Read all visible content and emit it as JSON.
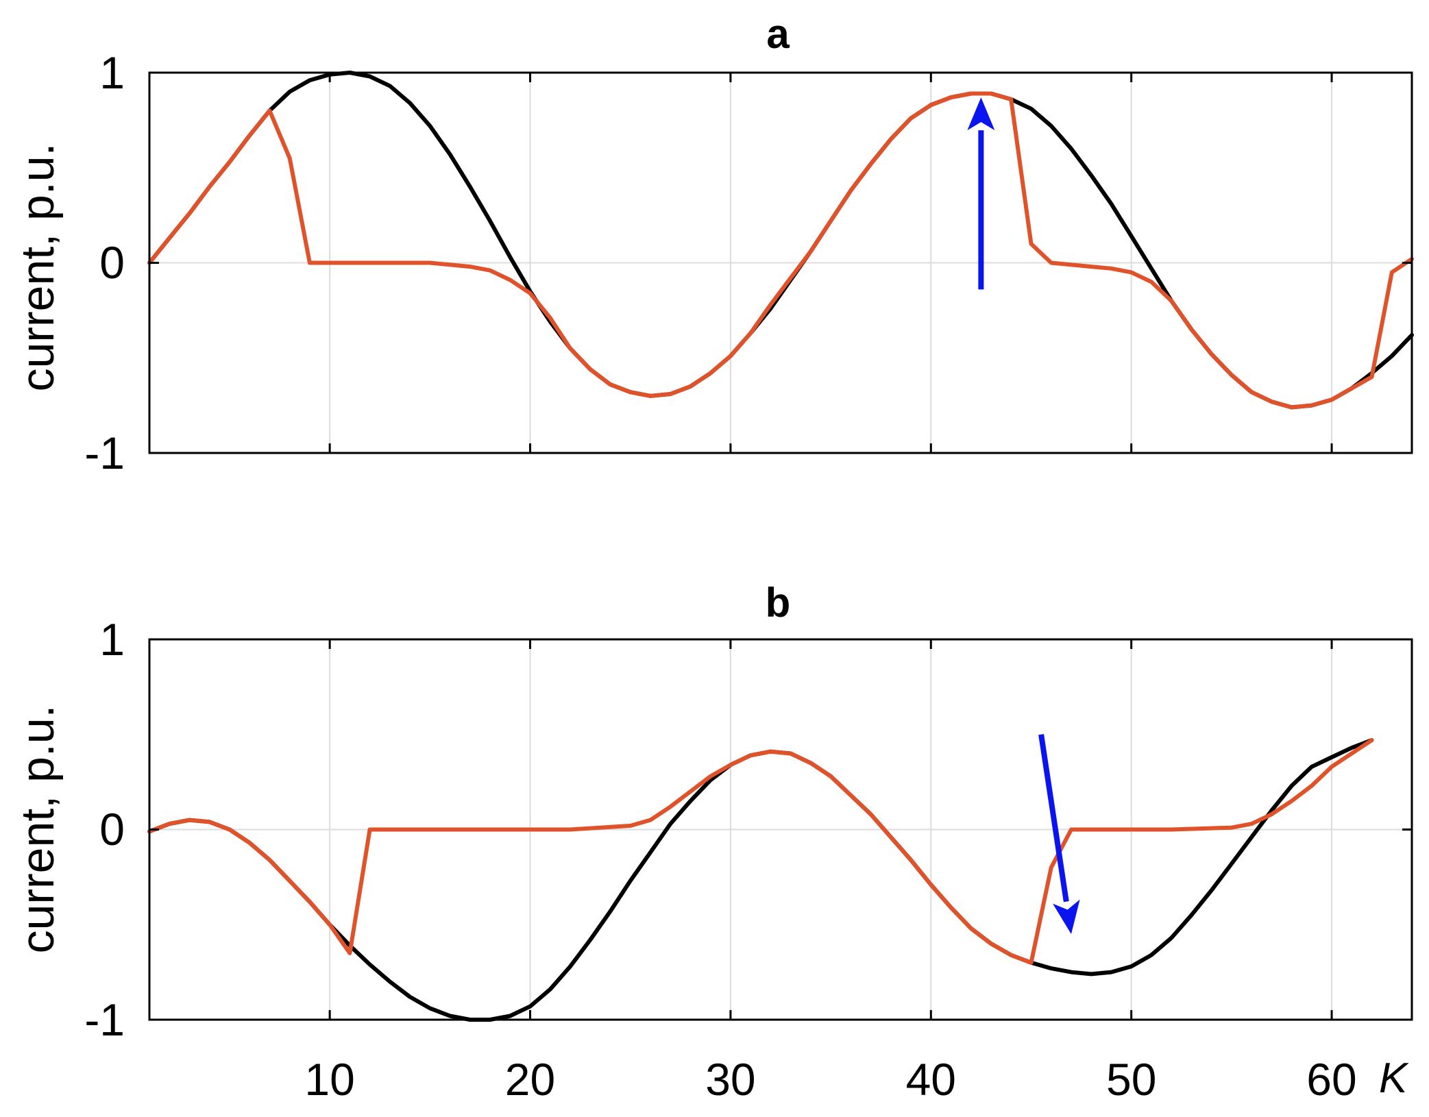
{
  "chart_data": [
    {
      "type": "line",
      "panel": "a",
      "title": "a",
      "ylabel": "current, p.u.",
      "xlim": [
        1,
        64
      ],
      "ylim": [
        -1,
        1
      ],
      "yticks": [
        "-1",
        "0",
        "1"
      ],
      "xticks": [
        10,
        20,
        30,
        40,
        50,
        60
      ],
      "grid": true,
      "colors": {
        "black_series": "#000000",
        "orange_series": "#e0522a",
        "arrow": "#0a14f0"
      },
      "series": [
        {
          "color": "#000000",
          "points": [
            [
              1,
              0
            ],
            [
              2,
              0.13
            ],
            [
              3,
              0.26
            ],
            [
              4,
              0.4
            ],
            [
              5,
              0.53
            ],
            [
              6,
              0.67
            ],
            [
              7,
              0.8
            ],
            [
              8,
              0.9
            ],
            [
              9,
              0.96
            ],
            [
              10,
              0.99
            ],
            [
              11,
              1
            ],
            [
              12,
              0.98
            ],
            [
              13,
              0.93
            ],
            [
              14,
              0.84
            ],
            [
              15,
              0.72
            ],
            [
              16,
              0.57
            ],
            [
              17,
              0.4
            ],
            [
              18,
              0.22
            ],
            [
              19,
              0.03
            ],
            [
              20,
              -0.15
            ],
            [
              21,
              -0.31
            ],
            [
              22,
              -0.45
            ],
            [
              23,
              -0.56
            ],
            [
              24,
              -0.64
            ],
            [
              25,
              -0.68
            ],
            [
              26,
              -0.7
            ],
            [
              27,
              -0.69
            ],
            [
              28,
              -0.65
            ],
            [
              29,
              -0.58
            ],
            [
              30,
              -0.49
            ],
            [
              31,
              -0.37
            ],
            [
              32,
              -0.24
            ],
            [
              33,
              -0.09
            ],
            [
              34,
              0.06
            ],
            [
              35,
              0.22
            ],
            [
              36,
              0.38
            ],
            [
              37,
              0.52
            ],
            [
              38,
              0.65
            ],
            [
              39,
              0.76
            ],
            [
              40,
              0.83
            ],
            [
              41,
              0.87
            ],
            [
              42,
              0.89
            ],
            [
              43,
              0.89
            ],
            [
              44,
              0.86
            ],
            [
              45,
              0.81
            ],
            [
              46,
              0.72
            ],
            [
              47,
              0.6
            ],
            [
              48,
              0.46
            ],
            [
              49,
              0.31
            ],
            [
              50,
              0.14
            ],
            [
              51,
              -0.03
            ],
            [
              52,
              -0.2
            ],
            [
              53,
              -0.35
            ],
            [
              54,
              -0.48
            ],
            [
              55,
              -0.59
            ],
            [
              56,
              -0.68
            ],
            [
              57,
              -0.73
            ],
            [
              58,
              -0.76
            ],
            [
              59,
              -0.75
            ],
            [
              60,
              -0.72
            ],
            [
              61,
              -0.66
            ],
            [
              62,
              -0.58
            ],
            [
              63,
              -0.49
            ],
            [
              64,
              -0.38
            ]
          ]
        },
        {
          "color": "#e0522a",
          "points": [
            [
              1,
              0
            ],
            [
              2,
              0.13
            ],
            [
              3,
              0.26
            ],
            [
              4,
              0.4
            ],
            [
              5,
              0.53
            ],
            [
              6,
              0.67
            ],
            [
              7,
              0.8
            ],
            [
              8,
              0.55
            ],
            [
              9,
              0
            ],
            [
              12,
              0
            ],
            [
              15,
              0
            ],
            [
              17,
              -0.02
            ],
            [
              18,
              -0.04
            ],
            [
              19,
              -0.09
            ],
            [
              20,
              -0.16
            ],
            [
              21,
              -0.29
            ],
            [
              22,
              -0.45
            ],
            [
              23,
              -0.56
            ],
            [
              24,
              -0.64
            ],
            [
              25,
              -0.68
            ],
            [
              26,
              -0.7
            ],
            [
              27,
              -0.69
            ],
            [
              28,
              -0.65
            ],
            [
              29,
              -0.58
            ],
            [
              30,
              -0.49
            ],
            [
              31,
              -0.37
            ],
            [
              32,
              -0.22
            ],
            [
              33,
              -0.08
            ],
            [
              34,
              0.06
            ],
            [
              35,
              0.22
            ],
            [
              36,
              0.38
            ],
            [
              37,
              0.52
            ],
            [
              38,
              0.65
            ],
            [
              39,
              0.76
            ],
            [
              40,
              0.83
            ],
            [
              41,
              0.87
            ],
            [
              42,
              0.89
            ],
            [
              43,
              0.89
            ],
            [
              44,
              0.86
            ],
            [
              45,
              0.1
            ],
            [
              46,
              0
            ],
            [
              48,
              -0.02
            ],
            [
              49,
              -0.03
            ],
            [
              50,
              -0.05
            ],
            [
              51,
              -0.1
            ],
            [
              52,
              -0.2
            ],
            [
              53,
              -0.35
            ],
            [
              54,
              -0.48
            ],
            [
              55,
              -0.59
            ],
            [
              56,
              -0.68
            ],
            [
              57,
              -0.73
            ],
            [
              58,
              -0.76
            ],
            [
              59,
              -0.75
            ],
            [
              60,
              -0.72
            ],
            [
              61,
              -0.66
            ],
            [
              62,
              -0.6
            ],
            [
              63,
              -0.05
            ],
            [
              64,
              0.02
            ]
          ]
        }
      ],
      "arrow": {
        "from": [
          42.5,
          -0.14
        ],
        "to": [
          42.5,
          0.87
        ]
      }
    },
    {
      "type": "line",
      "panel": "b",
      "title": "b",
      "ylabel": "current, p.u.",
      "xlabel": "K",
      "xlim": [
        1,
        64
      ],
      "ylim": [
        -1,
        1
      ],
      "yticks": [
        "-1",
        "0",
        "1"
      ],
      "xticks": [
        10,
        20,
        30,
        40,
        50,
        60
      ],
      "xticklabels": [
        "10",
        "20",
        "30",
        "40",
        "50",
        "60"
      ],
      "grid": true,
      "colors": {
        "black_series": "#000000",
        "orange_series": "#e0522a",
        "arrow": "#0a14f0"
      },
      "series": [
        {
          "color": "#000000",
          "points": [
            [
              1,
              -0.01
            ],
            [
              2,
              0.03
            ],
            [
              3,
              0.05
            ],
            [
              4,
              0.04
            ],
            [
              5,
              0
            ],
            [
              6,
              -0.07
            ],
            [
              7,
              -0.16
            ],
            [
              8,
              -0.27
            ],
            [
              9,
              -0.38
            ],
            [
              10,
              -0.5
            ],
            [
              11,
              -0.61
            ],
            [
              12,
              -0.71
            ],
            [
              13,
              -0.8
            ],
            [
              14,
              -0.88
            ],
            [
              15,
              -0.94
            ],
            [
              16,
              -0.98
            ],
            [
              17,
              -1
            ],
            [
              18,
              -1
            ],
            [
              19,
              -0.98
            ],
            [
              20,
              -0.93
            ],
            [
              21,
              -0.84
            ],
            [
              22,
              -0.72
            ],
            [
              23,
              -0.58
            ],
            [
              24,
              -0.43
            ],
            [
              25,
              -0.27
            ],
            [
              26,
              -0.12
            ],
            [
              27,
              0.03
            ],
            [
              28,
              0.15
            ],
            [
              29,
              0.26
            ],
            [
              30,
              0.34
            ],
            [
              31,
              0.39
            ],
            [
              32,
              0.41
            ],
            [
              33,
              0.4
            ],
            [
              34,
              0.35
            ],
            [
              35,
              0.28
            ],
            [
              36,
              0.18
            ],
            [
              37,
              0.08
            ],
            [
              38,
              -0.04
            ],
            [
              39,
              -0.16
            ],
            [
              40,
              -0.29
            ],
            [
              41,
              -0.41
            ],
            [
              42,
              -0.52
            ],
            [
              43,
              -0.6
            ],
            [
              44,
              -0.66
            ],
            [
              45,
              -0.7
            ],
            [
              46,
              -0.73
            ],
            [
              47,
              -0.75
            ],
            [
              48,
              -0.76
            ],
            [
              49,
              -0.75
            ],
            [
              50,
              -0.72
            ],
            [
              51,
              -0.66
            ],
            [
              52,
              -0.57
            ],
            [
              53,
              -0.45
            ],
            [
              54,
              -0.32
            ],
            [
              55,
              -0.18
            ],
            [
              56,
              -0.04
            ],
            [
              57,
              0.1
            ],
            [
              58,
              0.23
            ],
            [
              59,
              0.33
            ],
            [
              60,
              0.38
            ],
            [
              61,
              0.43
            ],
            [
              62,
              0.47
            ]
          ]
        },
        {
          "color": "#e0522a",
          "points": [
            [
              1,
              -0.01
            ],
            [
              2,
              0.03
            ],
            [
              3,
              0.05
            ],
            [
              4,
              0.04
            ],
            [
              5,
              0
            ],
            [
              6,
              -0.07
            ],
            [
              7,
              -0.16
            ],
            [
              8,
              -0.27
            ],
            [
              9,
              -0.38
            ],
            [
              10,
              -0.5
            ],
            [
              11,
              -0.65
            ],
            [
              12,
              0
            ],
            [
              13,
              0
            ],
            [
              17,
              0
            ],
            [
              22,
              0
            ],
            [
              25,
              0.02
            ],
            [
              26,
              0.05
            ],
            [
              27,
              0.12
            ],
            [
              28,
              0.2
            ],
            [
              29,
              0.28
            ],
            [
              30,
              0.34
            ],
            [
              31,
              0.39
            ],
            [
              32,
              0.41
            ],
            [
              33,
              0.4
            ],
            [
              34,
              0.35
            ],
            [
              35,
              0.28
            ],
            [
              36,
              0.18
            ],
            [
              37,
              0.08
            ],
            [
              38,
              -0.04
            ],
            [
              39,
              -0.16
            ],
            [
              40,
              -0.29
            ],
            [
              41,
              -0.41
            ],
            [
              42,
              -0.52
            ],
            [
              43,
              -0.6
            ],
            [
              44,
              -0.66
            ],
            [
              45,
              -0.7
            ],
            [
              46,
              -0.2
            ],
            [
              47,
              0
            ],
            [
              48,
              0
            ],
            [
              52,
              0
            ],
            [
              55,
              0.01
            ],
            [
              56,
              0.03
            ],
            [
              57,
              0.08
            ],
            [
              58,
              0.15
            ],
            [
              59,
              0.23
            ],
            [
              60,
              0.33
            ],
            [
              61,
              0.4
            ],
            [
              62,
              0.47
            ]
          ]
        }
      ],
      "arrow": {
        "from": [
          45.5,
          0.5
        ],
        "to": [
          47.0,
          -0.55
        ]
      }
    }
  ]
}
